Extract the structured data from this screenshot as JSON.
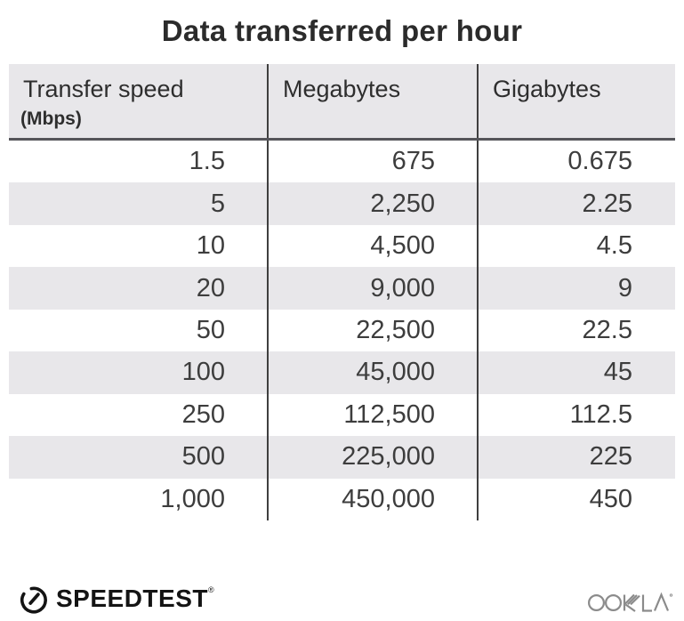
{
  "title": "Data transferred per hour",
  "table": {
    "columns": [
      {
        "label": "Transfer speed",
        "sublabel": "(Mbps)"
      },
      {
        "label": "Megabytes",
        "sublabel": ""
      },
      {
        "label": "Gigabytes",
        "sublabel": ""
      }
    ],
    "rows": [
      [
        "1.5",
        "675",
        "0.675"
      ],
      [
        "5",
        "2,250",
        "2.25"
      ],
      [
        "10",
        "4,500",
        "4.5"
      ],
      [
        "20",
        "9,000",
        "9"
      ],
      [
        "50",
        "22,500",
        "22.5"
      ],
      [
        "100",
        "45,000",
        "45"
      ],
      [
        "250",
        "112,500",
        "112.5"
      ],
      [
        "500",
        "225,000",
        "225"
      ],
      [
        "1,000",
        "450,000",
        "450"
      ]
    ]
  },
  "footer": {
    "speedtest_label": "SPEEDTEST",
    "speedtest_trademark": "®",
    "ookla_label": "OOKLA"
  },
  "colors": {
    "header_bg": "#e8e7ea",
    "row_alt_bg": "#e8e7ea",
    "row_bg": "#ffffff",
    "title_text": "#2b2b2b",
    "body_text": "#3d3d3d",
    "column_divider": "#3f3f3f",
    "header_rule": "#55555a",
    "speedtest_black": "#141414",
    "ookla_gray": "#8b8b8b"
  },
  "chart_data": {
    "type": "table",
    "title": "Data transferred per hour",
    "columns": [
      "Transfer speed (Mbps)",
      "Megabytes",
      "Gigabytes"
    ],
    "rows": [
      [
        1.5,
        675,
        0.675
      ],
      [
        5,
        2250,
        2.25
      ],
      [
        10,
        4500,
        4.5
      ],
      [
        20,
        9000,
        9
      ],
      [
        50,
        22500,
        22.5
      ],
      [
        100,
        45000,
        45
      ],
      [
        250,
        112500,
        112.5
      ],
      [
        500,
        225000,
        225
      ],
      [
        1000,
        450000,
        450
      ]
    ]
  }
}
